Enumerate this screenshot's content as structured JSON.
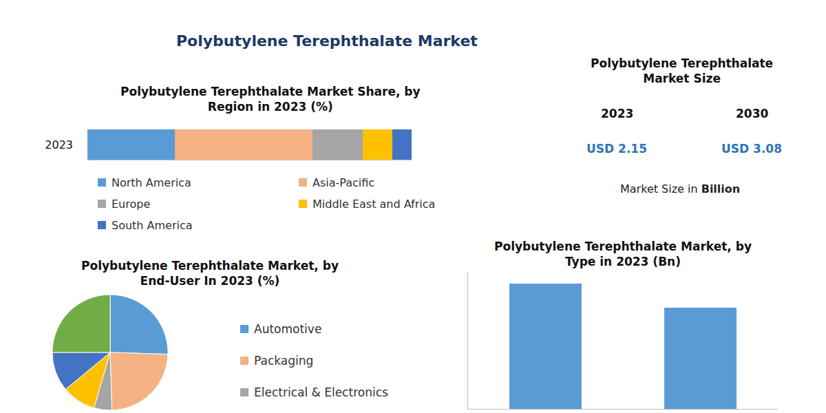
{
  "title": "Polybutylene Terephthalate Market",
  "market_size": {
    "title": [
      "Polybutylene Terephthalate",
      "Market Size"
    ],
    "columns": [
      {
        "year": "2023",
        "size": "USD 2.15"
      },
      {
        "year": "2030",
        "size": "USD 3.08"
      }
    ],
    "note": "Market Size in",
    "unit": "Billion"
  },
  "chart_data": [
    {
      "type": "bar",
      "orientation": "horizontal",
      "stacked": true,
      "title": [
        "Polybutylene Terephthalate Market Share, by",
        "Region in 2023 (%)"
      ],
      "categories": [
        "2023"
      ],
      "series": [
        {
          "name": "North America",
          "color": "#5b9bd5",
          "values": [
            27
          ]
        },
        {
          "name": "Asia-Pacific",
          "color": "#f4b183",
          "values": [
            42.5
          ]
        },
        {
          "name": "Europe",
          "color": "#a5a5a5",
          "values": [
            15.5
          ]
        },
        {
          "name": "Middle East and Africa",
          "color": "#ffc000",
          "values": [
            9
          ]
        },
        {
          "name": "South America",
          "color": "#4472c4",
          "values": [
            6
          ]
        }
      ],
      "xlim": [
        0,
        100
      ],
      "xticks": [],
      "tick_labels": "y",
      "grid": false,
      "legend": "bottom"
    },
    {
      "type": "pie",
      "title": [
        "Polybutylene Terephthalate Market, by",
        "End-User In 2023 (%)"
      ],
      "categories": [
        "Automotive",
        "Packaging",
        "Electrical & Electronics",
        null,
        null,
        null
      ],
      "values": [
        25.5,
        24,
        5,
        9.5,
        11,
        25
      ],
      "colors": [
        "#5b9bd5",
        "#f4b183",
        "#a5a5a5",
        "#ffc000",
        "#4472c4",
        "#70ad47"
      ],
      "data_labels": false,
      "legend": "right"
    },
    {
      "type": "bar",
      "title": [
        "Polybutylene Terephthalate Market, by",
        "Type in 2023 (Bn)"
      ],
      "categories": [
        null,
        null
      ],
      "values": [
        1.19,
        0.96
      ],
      "color": "#5b9bd5",
      "ylim": [
        0,
        1.3
      ],
      "yticks": [],
      "tick_labels": false,
      "grid": false
    }
  ]
}
